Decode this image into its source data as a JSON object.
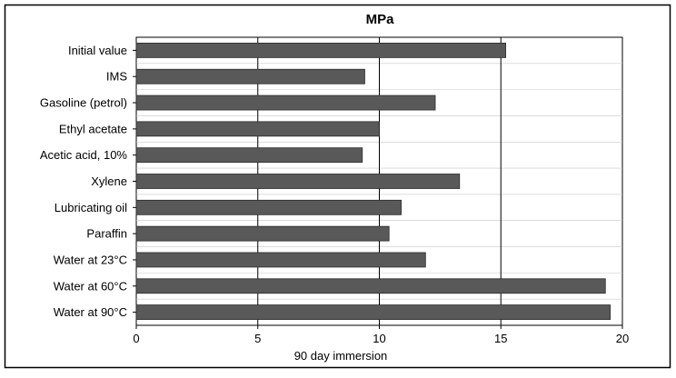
{
  "chart_data": {
    "type": "bar",
    "orientation": "horizontal",
    "title": "MPa",
    "xlabel": "90 day immersion",
    "ylabel": "",
    "xlim": [
      0,
      20
    ],
    "x_ticks": [
      0,
      5,
      10,
      15,
      20
    ],
    "grid": "vertical gridlines",
    "legend": "none",
    "categories": [
      "Initial value",
      "IMS",
      "Gasoline (petrol)",
      "Ethyl acetate",
      "Acetic acid, 10%",
      "Xylene",
      "Lubricating oil",
      "Paraffin",
      "Water at 23°C",
      "Water at 60°C",
      "Water at 90°C"
    ],
    "values": [
      15.2,
      9.4,
      12.3,
      10.0,
      9.3,
      13.3,
      10.9,
      10.4,
      11.9,
      19.3,
      19.5
    ],
    "colors": {
      "bar": "#595959",
      "bar_edge": "#2b2b2b",
      "grid": "#000000",
      "frame": "#000000",
      "background": "#ffffff"
    }
  }
}
